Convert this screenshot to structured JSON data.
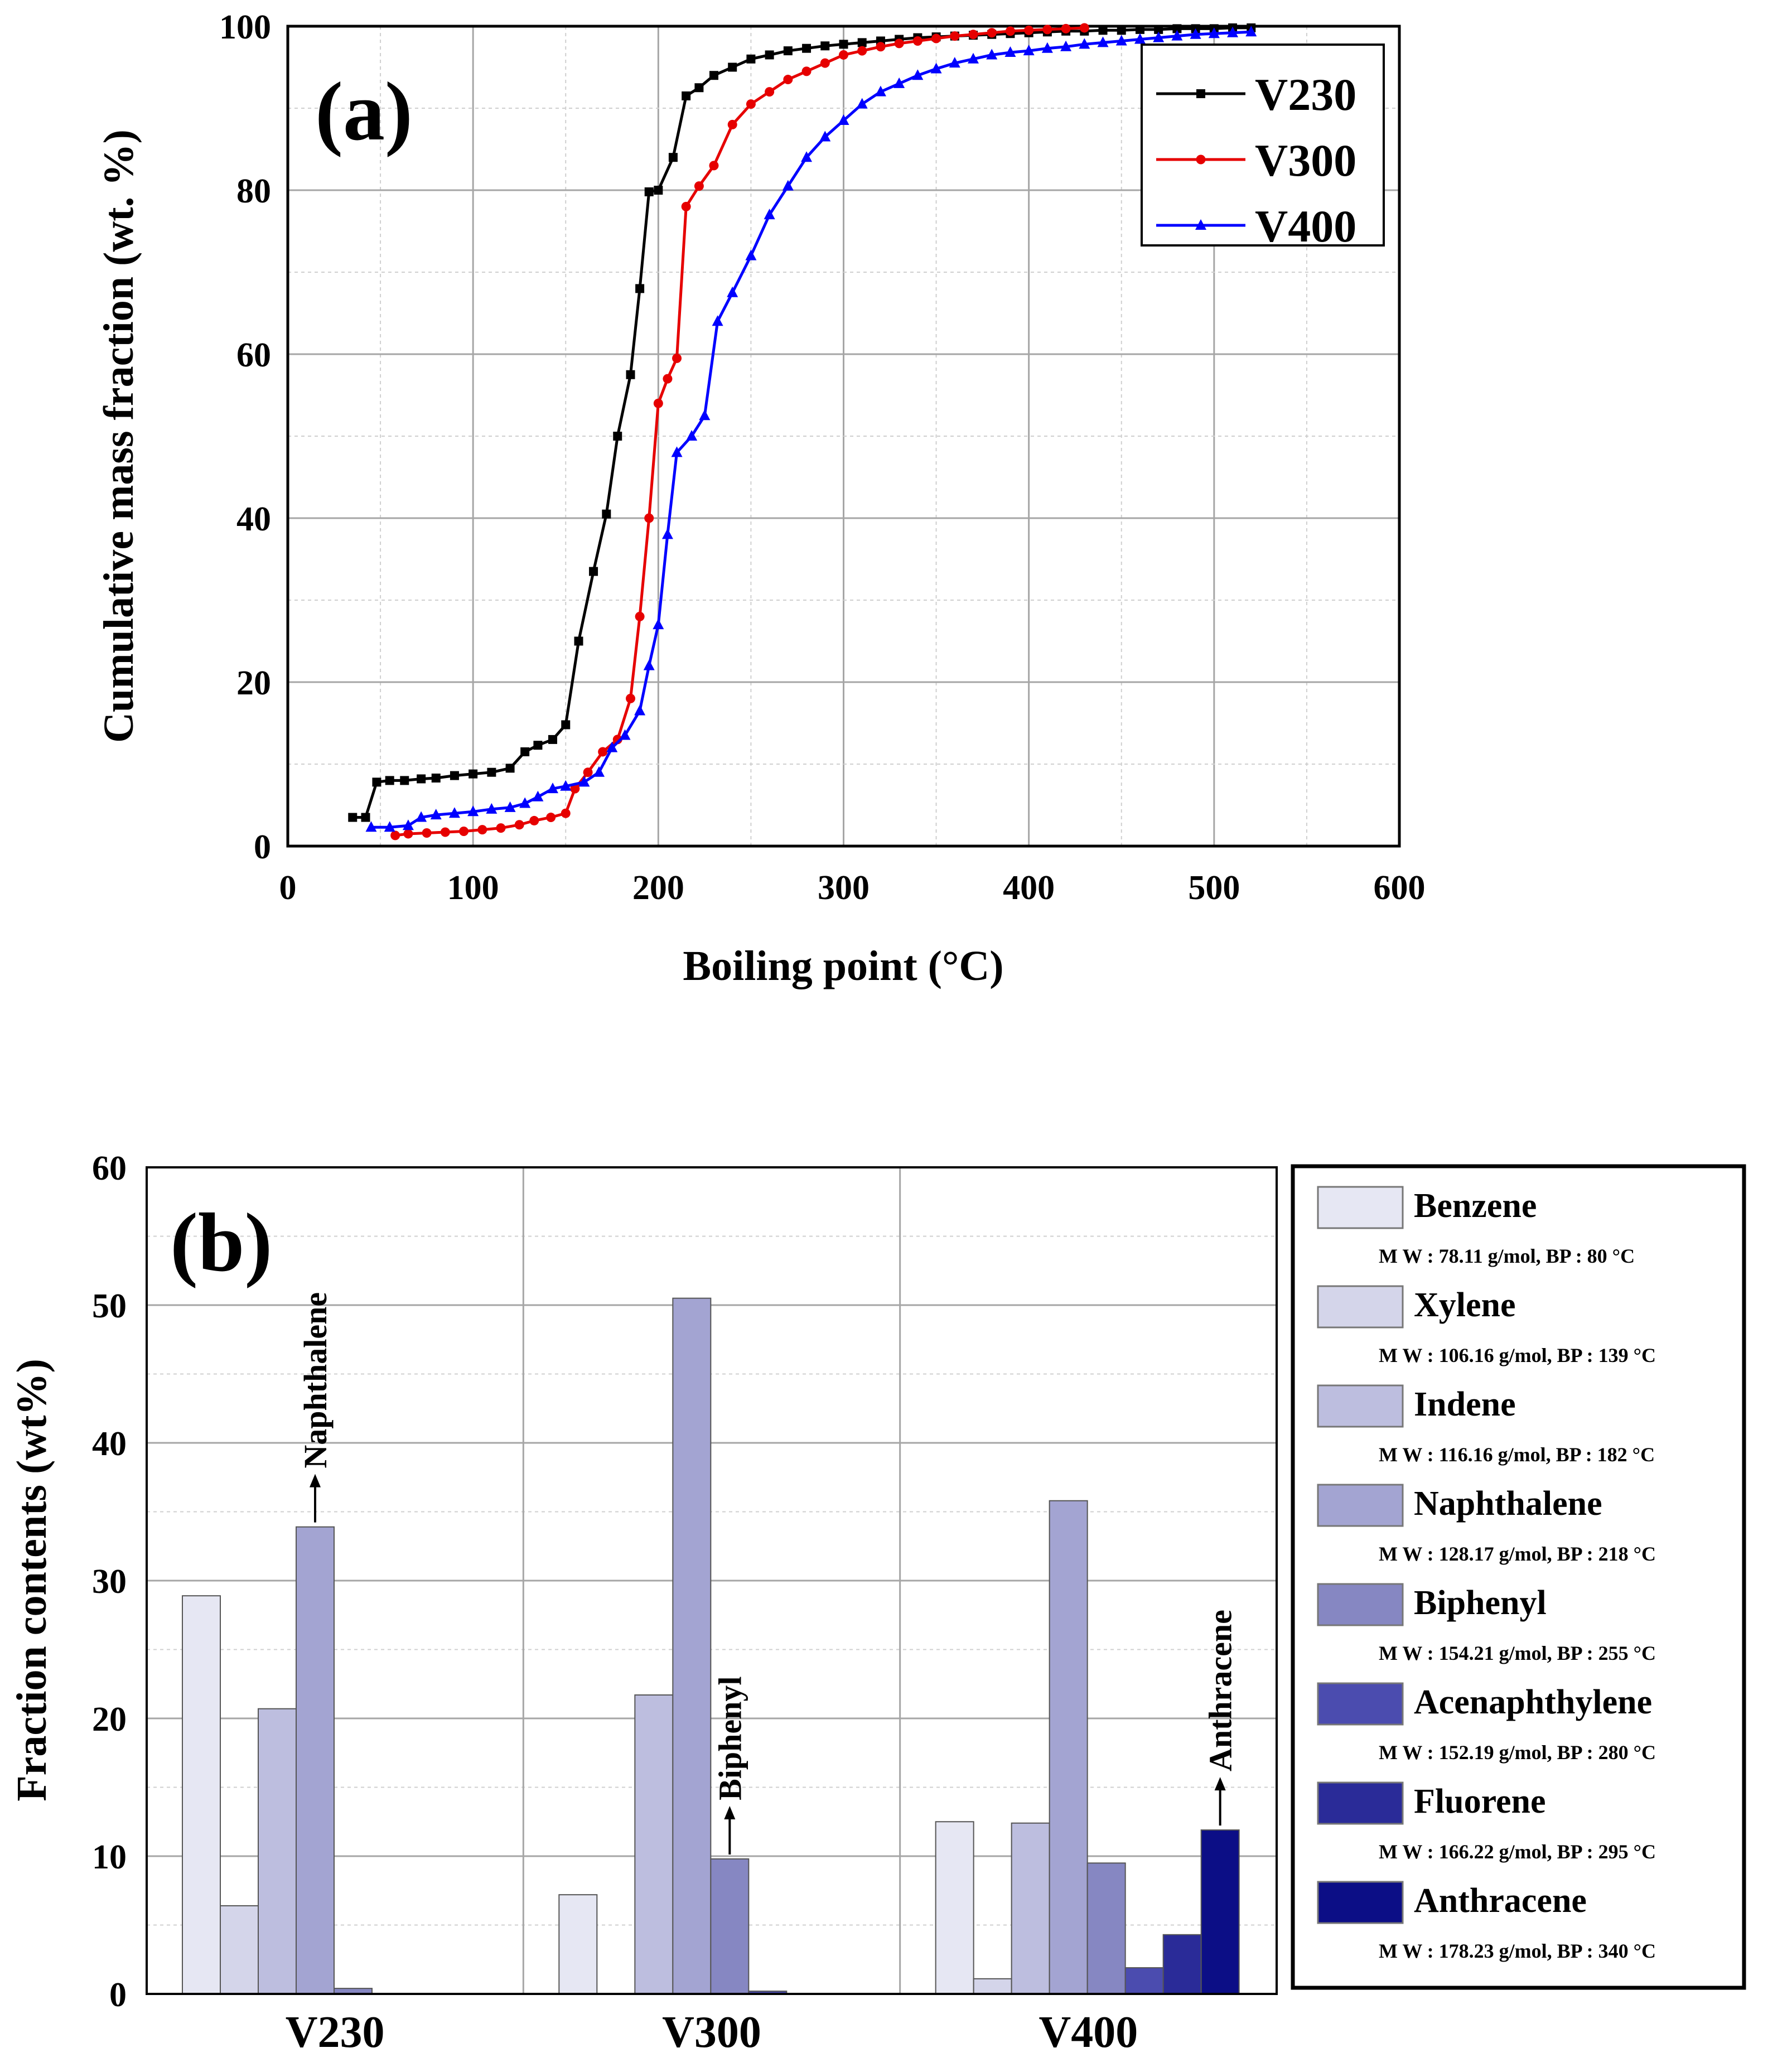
{
  "chart_data": [
    {
      "type": "line",
      "panel_label": "(a)",
      "xlabel": "Boiling point (°C)",
      "ylabel": "Cumulative mass fraction (wt. %)",
      "xlim": [
        0,
        600
      ],
      "ylim": [
        0,
        100
      ],
      "xticks": [
        0,
        100,
        200,
        300,
        400,
        500,
        600
      ],
      "yticks": [
        0,
        20,
        40,
        60,
        80,
        100
      ],
      "grid": true,
      "legend_position": "top-right",
      "series": [
        {
          "name": "V230",
          "color": "#000000",
          "marker": "square",
          "x": [
            35,
            42,
            48,
            55,
            63,
            72,
            80,
            90,
            100,
            110,
            120,
            128,
            135,
            143,
            150,
            157,
            165,
            172,
            178,
            185,
            190,
            195,
            200,
            208,
            215,
            222,
            230,
            240,
            250,
            260,
            270,
            280,
            290,
            300,
            310,
            320,
            330,
            340,
            350,
            360,
            370,
            380,
            390,
            400,
            410,
            420,
            430,
            440,
            450,
            460,
            470,
            480,
            490,
            500,
            510,
            520
          ],
          "y": [
            3.5,
            3.5,
            7.8,
            8.0,
            8.0,
            8.2,
            8.3,
            8.6,
            8.8,
            9.0,
            9.5,
            11.5,
            12.3,
            13.0,
            14.8,
            25.0,
            33.5,
            40.5,
            50.0,
            57.5,
            68.0,
            79.8,
            80.0,
            84.0,
            91.5,
            92.5,
            94.0,
            95.0,
            96.0,
            96.5,
            97.0,
            97.3,
            97.6,
            97.8,
            98.0,
            98.2,
            98.4,
            98.6,
            98.7,
            98.8,
            98.9,
            99.0,
            99.1,
            99.2,
            99.3,
            99.4,
            99.4,
            99.5,
            99.5,
            99.6,
            99.6,
            99.7,
            99.7,
            99.7,
            99.8,
            99.8
          ]
        },
        {
          "name": "V300",
          "color": "#e60000",
          "marker": "circle",
          "x": [
            58,
            65,
            75,
            85,
            95,
            105,
            115,
            125,
            133,
            142,
            150,
            155,
            162,
            170,
            178,
            185,
            190,
            195,
            200,
            205,
            210,
            215,
            222,
            230,
            240,
            250,
            260,
            270,
            280,
            290,
            300,
            310,
            320,
            330,
            340,
            350,
            360,
            370,
            380,
            390,
            400,
            410,
            420,
            430
          ],
          "y": [
            1.3,
            1.5,
            1.6,
            1.7,
            1.8,
            2.0,
            2.2,
            2.6,
            3.1,
            3.5,
            4.0,
            7.0,
            9.0,
            11.5,
            13.0,
            18.0,
            28.0,
            40.0,
            54.0,
            57.0,
            59.5,
            78.0,
            80.5,
            83.0,
            88.0,
            90.5,
            92.0,
            93.5,
            94.5,
            95.5,
            96.5,
            97.0,
            97.5,
            97.9,
            98.2,
            98.5,
            98.8,
            99.0,
            99.2,
            99.4,
            99.5,
            99.6,
            99.7,
            99.8
          ]
        },
        {
          "name": "V400",
          "color": "#0000ff",
          "marker": "triangle",
          "x": [
            45,
            55,
            65,
            72,
            80,
            90,
            100,
            110,
            120,
            128,
            135,
            143,
            150,
            160,
            168,
            175,
            182,
            190,
            195,
            200,
            205,
            210,
            218,
            225,
            232,
            240,
            250,
            260,
            270,
            280,
            290,
            300,
            310,
            320,
            330,
            340,
            350,
            360,
            370,
            380,
            390,
            400,
            410,
            420,
            430,
            440,
            450,
            460,
            470,
            480,
            490,
            500,
            510,
            520
          ],
          "y": [
            2.3,
            2.3,
            2.5,
            3.5,
            3.8,
            4.0,
            4.2,
            4.5,
            4.7,
            5.2,
            6.0,
            7.0,
            7.3,
            7.8,
            9.0,
            12.0,
            13.5,
            16.5,
            22.0,
            27.0,
            38.0,
            48.0,
            50.0,
            52.5,
            64.0,
            67.5,
            72.0,
            77.0,
            80.5,
            84.0,
            86.5,
            88.5,
            90.5,
            92.0,
            93.0,
            94.0,
            94.8,
            95.5,
            96.0,
            96.5,
            96.8,
            97.0,
            97.3,
            97.5,
            97.8,
            98.0,
            98.2,
            98.4,
            98.6,
            98.8,
            99.0,
            99.1,
            99.2,
            99.3
          ]
        }
      ]
    },
    {
      "type": "bar",
      "panel_label": "(b)",
      "xlabel": "",
      "ylabel": "Fraction contents (wt%)",
      "ylim": [
        0,
        60
      ],
      "yticks": [
        0,
        10,
        20,
        30,
        40,
        50,
        60
      ],
      "grid": true,
      "legend_position": "right",
      "categories": [
        "V230",
        "V300",
        "V400"
      ],
      "series": [
        {
          "name": "Benzene",
          "info": "M W : 78.11 g/mol,    BP :   80 °C",
          "color": "#e6e7f3",
          "values": [
            28.9,
            7.2,
            12.5
          ]
        },
        {
          "name": "Xylene",
          "info": "M W : 106.16 g/mol,  BP : 139 °C",
          "color": "#d4d5ea",
          "values": [
            6.4,
            0.0,
            1.1
          ]
        },
        {
          "name": "Indene",
          "info": "M W : 116.16 g/mol,  BP : 182 °C",
          "color": "#bdbedf",
          "values": [
            20.7,
            21.7,
            12.4
          ]
        },
        {
          "name": "Naphthalene",
          "info": "M W : 128.17 g/mol,  BP : 218 °C",
          "color": "#a3a4d2",
          "values": [
            33.9,
            50.5,
            35.8
          ]
        },
        {
          "name": "Biphenyl",
          "info": "M W : 154.21 g/mol,  BP : 255 °C",
          "color": "#8687c2",
          "values": [
            0.4,
            9.8,
            9.5
          ]
        },
        {
          "name": "Acenaphthylene",
          "info": "M W : 152.19 g/mol,  BP : 280 °C",
          "color": "#4b4caf",
          "values": [
            0.0,
            0.2,
            1.9
          ]
        },
        {
          "name": "Fluorene",
          "info": "M W : 166.22 g/mol,  BP : 295 °C",
          "color": "#2a2b98",
          "values": [
            0.0,
            0.0,
            4.3
          ]
        },
        {
          "name": "Anthracene",
          "info": "M W : 178.23 g/mol,  BP : 340 °C",
          "color": "#0c0e86",
          "values": [
            0.0,
            0.0,
            11.9
          ]
        }
      ],
      "annotations": [
        {
          "text": "Naphthalene",
          "category": "V230",
          "series": "Naphthalene"
        },
        {
          "text": "Biphenyl",
          "category": "V300",
          "series": "Biphenyl"
        },
        {
          "text": "Anthracene",
          "category": "V400",
          "series": "Anthracene"
        }
      ]
    }
  ]
}
